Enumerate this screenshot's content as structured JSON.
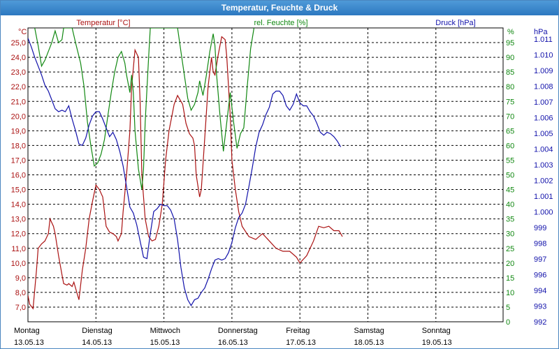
{
  "window": {
    "title": "Temperatur, Feuchte & Druck"
  },
  "colors": {
    "temperature": "#aa1111",
    "humidity": "#118811",
    "pressure": "#1111aa",
    "grid": "#000000"
  },
  "chart_data": {
    "type": "line",
    "title": "Temperatur, Feuchte & Druck",
    "grid": true,
    "x_days": [
      {
        "day": "Montag",
        "date": "13.05.13"
      },
      {
        "day": "Dienstag",
        "date": "14.05.13"
      },
      {
        "day": "Mittwoch",
        "date": "15.05.13"
      },
      {
        "day": "Donnerstag",
        "date": "16.05.13"
      },
      {
        "day": "Freitag",
        "date": "17.05.13"
      },
      {
        "day": "Samstag",
        "date": "18.05.13"
      },
      {
        "day": "Sonntag",
        "date": "19.05.13"
      }
    ],
    "axes": {
      "temperature": {
        "title": "Temperatur [°C]",
        "unit": "°C",
        "ylim": [
          6,
          26
        ],
        "ticks": [
          "7,0",
          "8,0",
          "9,0",
          "10,0",
          "11,0",
          "12,0",
          "13,0",
          "14,0",
          "15,0",
          "16,0",
          "17,0",
          "18,0",
          "19,0",
          "20,0",
          "21,0",
          "22,0",
          "23,0",
          "24,0",
          "25,0"
        ]
      },
      "humidity": {
        "title": "rel. Feuchte [%]",
        "unit": "%",
        "ylim": [
          0,
          100
        ],
        "ticks": [
          "0",
          "5",
          "10",
          "15",
          "20",
          "25",
          "30",
          "35",
          "40",
          "45",
          "50",
          "55",
          "60",
          "65",
          "70",
          "75",
          "80",
          "85",
          "90",
          "95"
        ]
      },
      "pressure": {
        "title": "Druck [hPa]",
        "unit": "hPa",
        "ticks": [
          "992",
          "993",
          "994",
          "996",
          "997",
          "998",
          "999",
          "1.000",
          "1.001",
          "1.002",
          "1.003",
          "1.004",
          "1.005",
          "1.006",
          "1.007",
          "1.008",
          "1.009",
          "1.010",
          "1.011"
        ]
      }
    },
    "series": [
      {
        "name": "Temperatur [°C]",
        "axis": "temperature",
        "color": "#aa1111",
        "points": [
          [
            0,
            7.8
          ],
          [
            0.05,
            7.2
          ],
          [
            0.15,
            6.9
          ],
          [
            0.25,
            9.5
          ],
          [
            0.3,
            11.0
          ],
          [
            0.4,
            11.3
          ],
          [
            0.5,
            11.5
          ],
          [
            0.6,
            12.0
          ],
          [
            0.65,
            13.0
          ],
          [
            0.75,
            12.5
          ],
          [
            0.8,
            12.0
          ],
          [
            0.9,
            10.5
          ],
          [
            1.0,
            9.2
          ],
          [
            1.05,
            8.6
          ],
          [
            1.15,
            8.5
          ],
          [
            1.2,
            8.6
          ],
          [
            1.3,
            8.4
          ],
          [
            1.35,
            8.7
          ],
          [
            1.45,
            7.9
          ],
          [
            1.5,
            7.5
          ],
          [
            1.6,
            9.5
          ],
          [
            1.7,
            11.0
          ],
          [
            1.8,
            13.0
          ],
          [
            1.9,
            14.2
          ],
          [
            2.0,
            15.3
          ],
          [
            2.1,
            15.0
          ],
          [
            2.2,
            14.5
          ],
          [
            2.3,
            12.5
          ],
          [
            2.4,
            12.1
          ],
          [
            2.5,
            12.0
          ],
          [
            2.6,
            11.8
          ],
          [
            2.65,
            11.5
          ],
          [
            2.75,
            12.0
          ],
          [
            2.8,
            13.5
          ],
          [
            2.9,
            16.0
          ],
          [
            3.0,
            19.0
          ],
          [
            3.05,
            22.0
          ],
          [
            3.15,
            24.5
          ],
          [
            3.25,
            24.0
          ],
          [
            3.3,
            21.0
          ],
          [
            3.35,
            16.0
          ],
          [
            3.45,
            13.0
          ],
          [
            3.55,
            11.8
          ],
          [
            3.65,
            11.5
          ],
          [
            3.75,
            11.6
          ],
          [
            3.85,
            12.5
          ],
          [
            3.95,
            14.0
          ],
          [
            4.05,
            17.0
          ],
          [
            4.15,
            19.0
          ],
          [
            4.3,
            20.8
          ],
          [
            4.4,
            21.4
          ],
          [
            4.55,
            20.8
          ],
          [
            4.65,
            19.5
          ],
          [
            4.75,
            18.8
          ],
          [
            4.85,
            18.5
          ],
          [
            4.9,
            18.0
          ],
          [
            4.95,
            16.0
          ],
          [
            5.05,
            14.5
          ],
          [
            5.1,
            15.0
          ],
          [
            5.2,
            18.5
          ],
          [
            5.3,
            22.0
          ],
          [
            5.4,
            24.0
          ],
          [
            5.45,
            23.0
          ],
          [
            5.5,
            22.8
          ],
          [
            5.6,
            24.2
          ],
          [
            5.7,
            25.4
          ],
          [
            5.8,
            25.2
          ],
          [
            5.85,
            24.0
          ],
          [
            5.95,
            20.0
          ],
          [
            6.0,
            17.0
          ],
          [
            6.1,
            15.0
          ],
          [
            6.2,
            13.5
          ],
          [
            6.3,
            12.5
          ],
          [
            6.5,
            11.8
          ],
          [
            6.7,
            11.6
          ],
          [
            6.9,
            12.0
          ],
          [
            7.1,
            11.5
          ],
          [
            7.3,
            11.0
          ],
          [
            7.5,
            10.8
          ],
          [
            7.7,
            10.8
          ],
          [
            7.9,
            10.4
          ],
          [
            8.0,
            10.0
          ],
          [
            8.2,
            10.5
          ],
          [
            8.4,
            11.5
          ],
          [
            8.55,
            12.5
          ],
          [
            8.7,
            12.4
          ],
          [
            8.85,
            12.5
          ],
          [
            9.0,
            12.2
          ],
          [
            9.15,
            12.2
          ],
          [
            9.25,
            11.8
          ]
        ]
      },
      {
        "name": "rel. Feuchte [%]",
        "axis": "humidity",
        "color": "#118811",
        "points": [
          [
            0.2,
            100
          ],
          [
            0.3,
            94
          ],
          [
            0.4,
            87
          ],
          [
            0.5,
            89
          ],
          [
            0.6,
            92
          ],
          [
            0.7,
            95
          ],
          [
            0.8,
            99
          ],
          [
            0.9,
            95
          ],
          [
            1.0,
            96
          ],
          [
            1.05,
            100
          ],
          [
            1.3,
            100
          ],
          [
            1.4,
            95
          ],
          [
            1.55,
            88
          ],
          [
            1.65,
            80
          ],
          [
            1.75,
            68
          ],
          [
            1.85,
            60
          ],
          [
            1.95,
            53
          ],
          [
            2.05,
            54
          ],
          [
            2.15,
            57
          ],
          [
            2.25,
            62
          ],
          [
            2.35,
            70
          ],
          [
            2.45,
            78
          ],
          [
            2.55,
            85
          ],
          [
            2.65,
            90
          ],
          [
            2.75,
            92
          ],
          [
            2.85,
            88
          ],
          [
            2.9,
            84
          ],
          [
            3.0,
            78
          ],
          [
            3.05,
            84
          ],
          [
            3.1,
            78
          ],
          [
            3.15,
            65
          ],
          [
            3.25,
            52
          ],
          [
            3.35,
            45
          ],
          [
            3.4,
            52
          ],
          [
            3.45,
            68
          ],
          [
            3.55,
            90
          ],
          [
            3.6,
            100
          ],
          [
            4.4,
            100
          ],
          [
            4.5,
            92
          ],
          [
            4.6,
            84
          ],
          [
            4.7,
            76
          ],
          [
            4.8,
            72
          ],
          [
            4.9,
            74
          ],
          [
            5.0,
            78
          ],
          [
            5.05,
            82
          ],
          [
            5.15,
            77
          ],
          [
            5.25,
            84
          ],
          [
            5.35,
            92
          ],
          [
            5.45,
            98
          ],
          [
            5.5,
            94
          ],
          [
            5.55,
            84
          ],
          [
            5.65,
            70
          ],
          [
            5.75,
            58
          ],
          [
            5.85,
            68
          ],
          [
            5.95,
            78
          ],
          [
            6.05,
            68
          ],
          [
            6.15,
            59
          ],
          [
            6.25,
            64
          ],
          [
            6.35,
            66
          ],
          [
            6.45,
            80
          ],
          [
            6.55,
            93
          ],
          [
            6.65,
            100
          ]
        ]
      },
      {
        "name": "Druck [hPa]",
        "axis": "pressure",
        "color": "#1111aa",
        "points": [
          [
            0,
            96.5
          ],
          [
            0.1,
            93.5
          ],
          [
            0.2,
            90.0
          ],
          [
            0.3,
            87.0
          ],
          [
            0.4,
            84.0
          ],
          [
            0.5,
            80.5
          ],
          [
            0.6,
            78.5
          ],
          [
            0.7,
            75.5
          ],
          [
            0.8,
            72.5
          ],
          [
            0.9,
            71.5
          ],
          [
            1.0,
            72.0
          ],
          [
            1.1,
            71.5
          ],
          [
            1.2,
            73.5
          ],
          [
            1.3,
            69.0
          ],
          [
            1.4,
            65.0
          ],
          [
            1.5,
            60.5
          ],
          [
            1.6,
            60.0
          ],
          [
            1.7,
            62.5
          ],
          [
            1.8,
            67.0
          ],
          [
            1.9,
            70.0
          ],
          [
            2.0,
            71.5
          ],
          [
            2.1,
            71.5
          ],
          [
            2.2,
            69.0
          ],
          [
            2.3,
            66.0
          ],
          [
            2.4,
            63.0
          ],
          [
            2.5,
            64.5
          ],
          [
            2.6,
            62.0
          ],
          [
            2.7,
            58.0
          ],
          [
            2.8,
            53.0
          ],
          [
            2.9,
            46.0
          ],
          [
            3.0,
            39.0
          ],
          [
            3.1,
            37.0
          ],
          [
            3.2,
            33.0
          ],
          [
            3.3,
            27.5
          ],
          [
            3.4,
            22.0
          ],
          [
            3.5,
            21.5
          ],
          [
            3.6,
            30.0
          ],
          [
            3.7,
            37.5
          ],
          [
            3.8,
            38.5
          ],
          [
            3.9,
            40.0
          ],
          [
            4.0,
            39.5
          ],
          [
            4.1,
            39.5
          ],
          [
            4.2,
            38.0
          ],
          [
            4.3,
            35.0
          ],
          [
            4.4,
            28.0
          ],
          [
            4.5,
            18.5
          ],
          [
            4.6,
            11.5
          ],
          [
            4.7,
            7.5
          ],
          [
            4.8,
            5.5
          ],
          [
            4.9,
            7.5
          ],
          [
            5.0,
            8.0
          ],
          [
            5.1,
            10.0
          ],
          [
            5.2,
            11.5
          ],
          [
            5.3,
            14.5
          ],
          [
            5.4,
            18.0
          ],
          [
            5.5,
            21.0
          ],
          [
            5.6,
            21.5
          ],
          [
            5.7,
            21.0
          ],
          [
            5.8,
            21.5
          ],
          [
            5.9,
            23.5
          ],
          [
            6.0,
            27.0
          ],
          [
            6.1,
            32.0
          ],
          [
            6.2,
            35.5
          ],
          [
            6.3,
            37.0
          ],
          [
            6.4,
            40.0
          ],
          [
            6.5,
            46.0
          ],
          [
            6.6,
            52.5
          ],
          [
            6.7,
            59.5
          ],
          [
            6.8,
            64.5
          ],
          [
            6.9,
            67.0
          ],
          [
            7.0,
            70.5
          ],
          [
            7.1,
            73.0
          ],
          [
            7.2,
            77.5
          ],
          [
            7.3,
            78.5
          ],
          [
            7.4,
            78.5
          ],
          [
            7.5,
            77.0
          ],
          [
            7.6,
            73.5
          ],
          [
            7.7,
            72.0
          ],
          [
            7.8,
            74.0
          ],
          [
            7.9,
            77.5
          ],
          [
            8.0,
            74.5
          ],
          [
            8.1,
            73.5
          ],
          [
            8.2,
            73.5
          ],
          [
            8.3,
            71.5
          ],
          [
            8.4,
            70.0
          ],
          [
            8.5,
            67.5
          ],
          [
            8.6,
            64.5
          ],
          [
            8.7,
            63.5
          ],
          [
            8.8,
            64.5
          ],
          [
            8.9,
            64.0
          ],
          [
            9.0,
            63.0
          ],
          [
            9.1,
            61.5
          ],
          [
            9.2,
            59.5
          ]
        ]
      }
    ]
  }
}
